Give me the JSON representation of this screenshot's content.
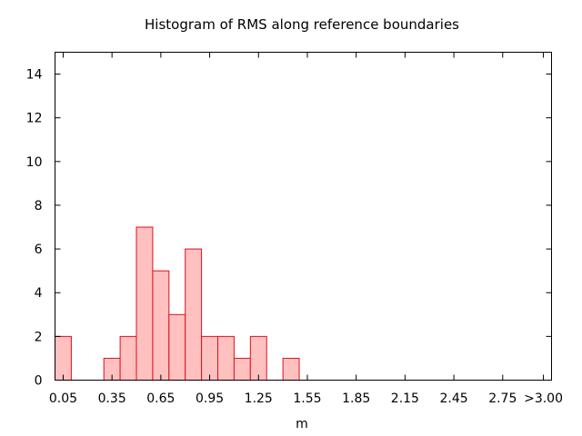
{
  "chart_data": {
    "type": "bar",
    "title": "Histogram of RMS along reference boundaries",
    "xlabel": "m",
    "ylabel": "",
    "bin_width": 0.1,
    "xlim": [
      0.0,
      3.05
    ],
    "ylim": [
      0,
      15
    ],
    "yticks": [
      0,
      2,
      4,
      6,
      8,
      10,
      12,
      14
    ],
    "xtick_values": [
      0.05,
      0.35,
      0.65,
      0.95,
      1.25,
      1.55,
      1.85,
      2.15,
      2.45,
      2.75,
      3.0
    ],
    "xtick_labels": [
      "0.05",
      "0.35",
      "0.65",
      "0.95",
      "1.25",
      "1.55",
      "1.85",
      "2.15",
      "2.45",
      "2.75",
      ">3.00"
    ],
    "bins": [
      {
        "x": 0.05,
        "value": 2
      },
      {
        "x": 0.35,
        "value": 1
      },
      {
        "x": 0.45,
        "value": 2
      },
      {
        "x": 0.55,
        "value": 7
      },
      {
        "x": 0.65,
        "value": 5
      },
      {
        "x": 0.75,
        "value": 3
      },
      {
        "x": 0.85,
        "value": 6
      },
      {
        "x": 0.95,
        "value": 2
      },
      {
        "x": 1.05,
        "value": 2
      },
      {
        "x": 1.15,
        "value": 1
      },
      {
        "x": 1.25,
        "value": 2
      },
      {
        "x": 1.45,
        "value": 1
      }
    ],
    "grid": false,
    "colors": {
      "bar_fill": "#ffc0c0",
      "bar_stroke": "#e0101c",
      "axis": "#000000"
    }
  }
}
